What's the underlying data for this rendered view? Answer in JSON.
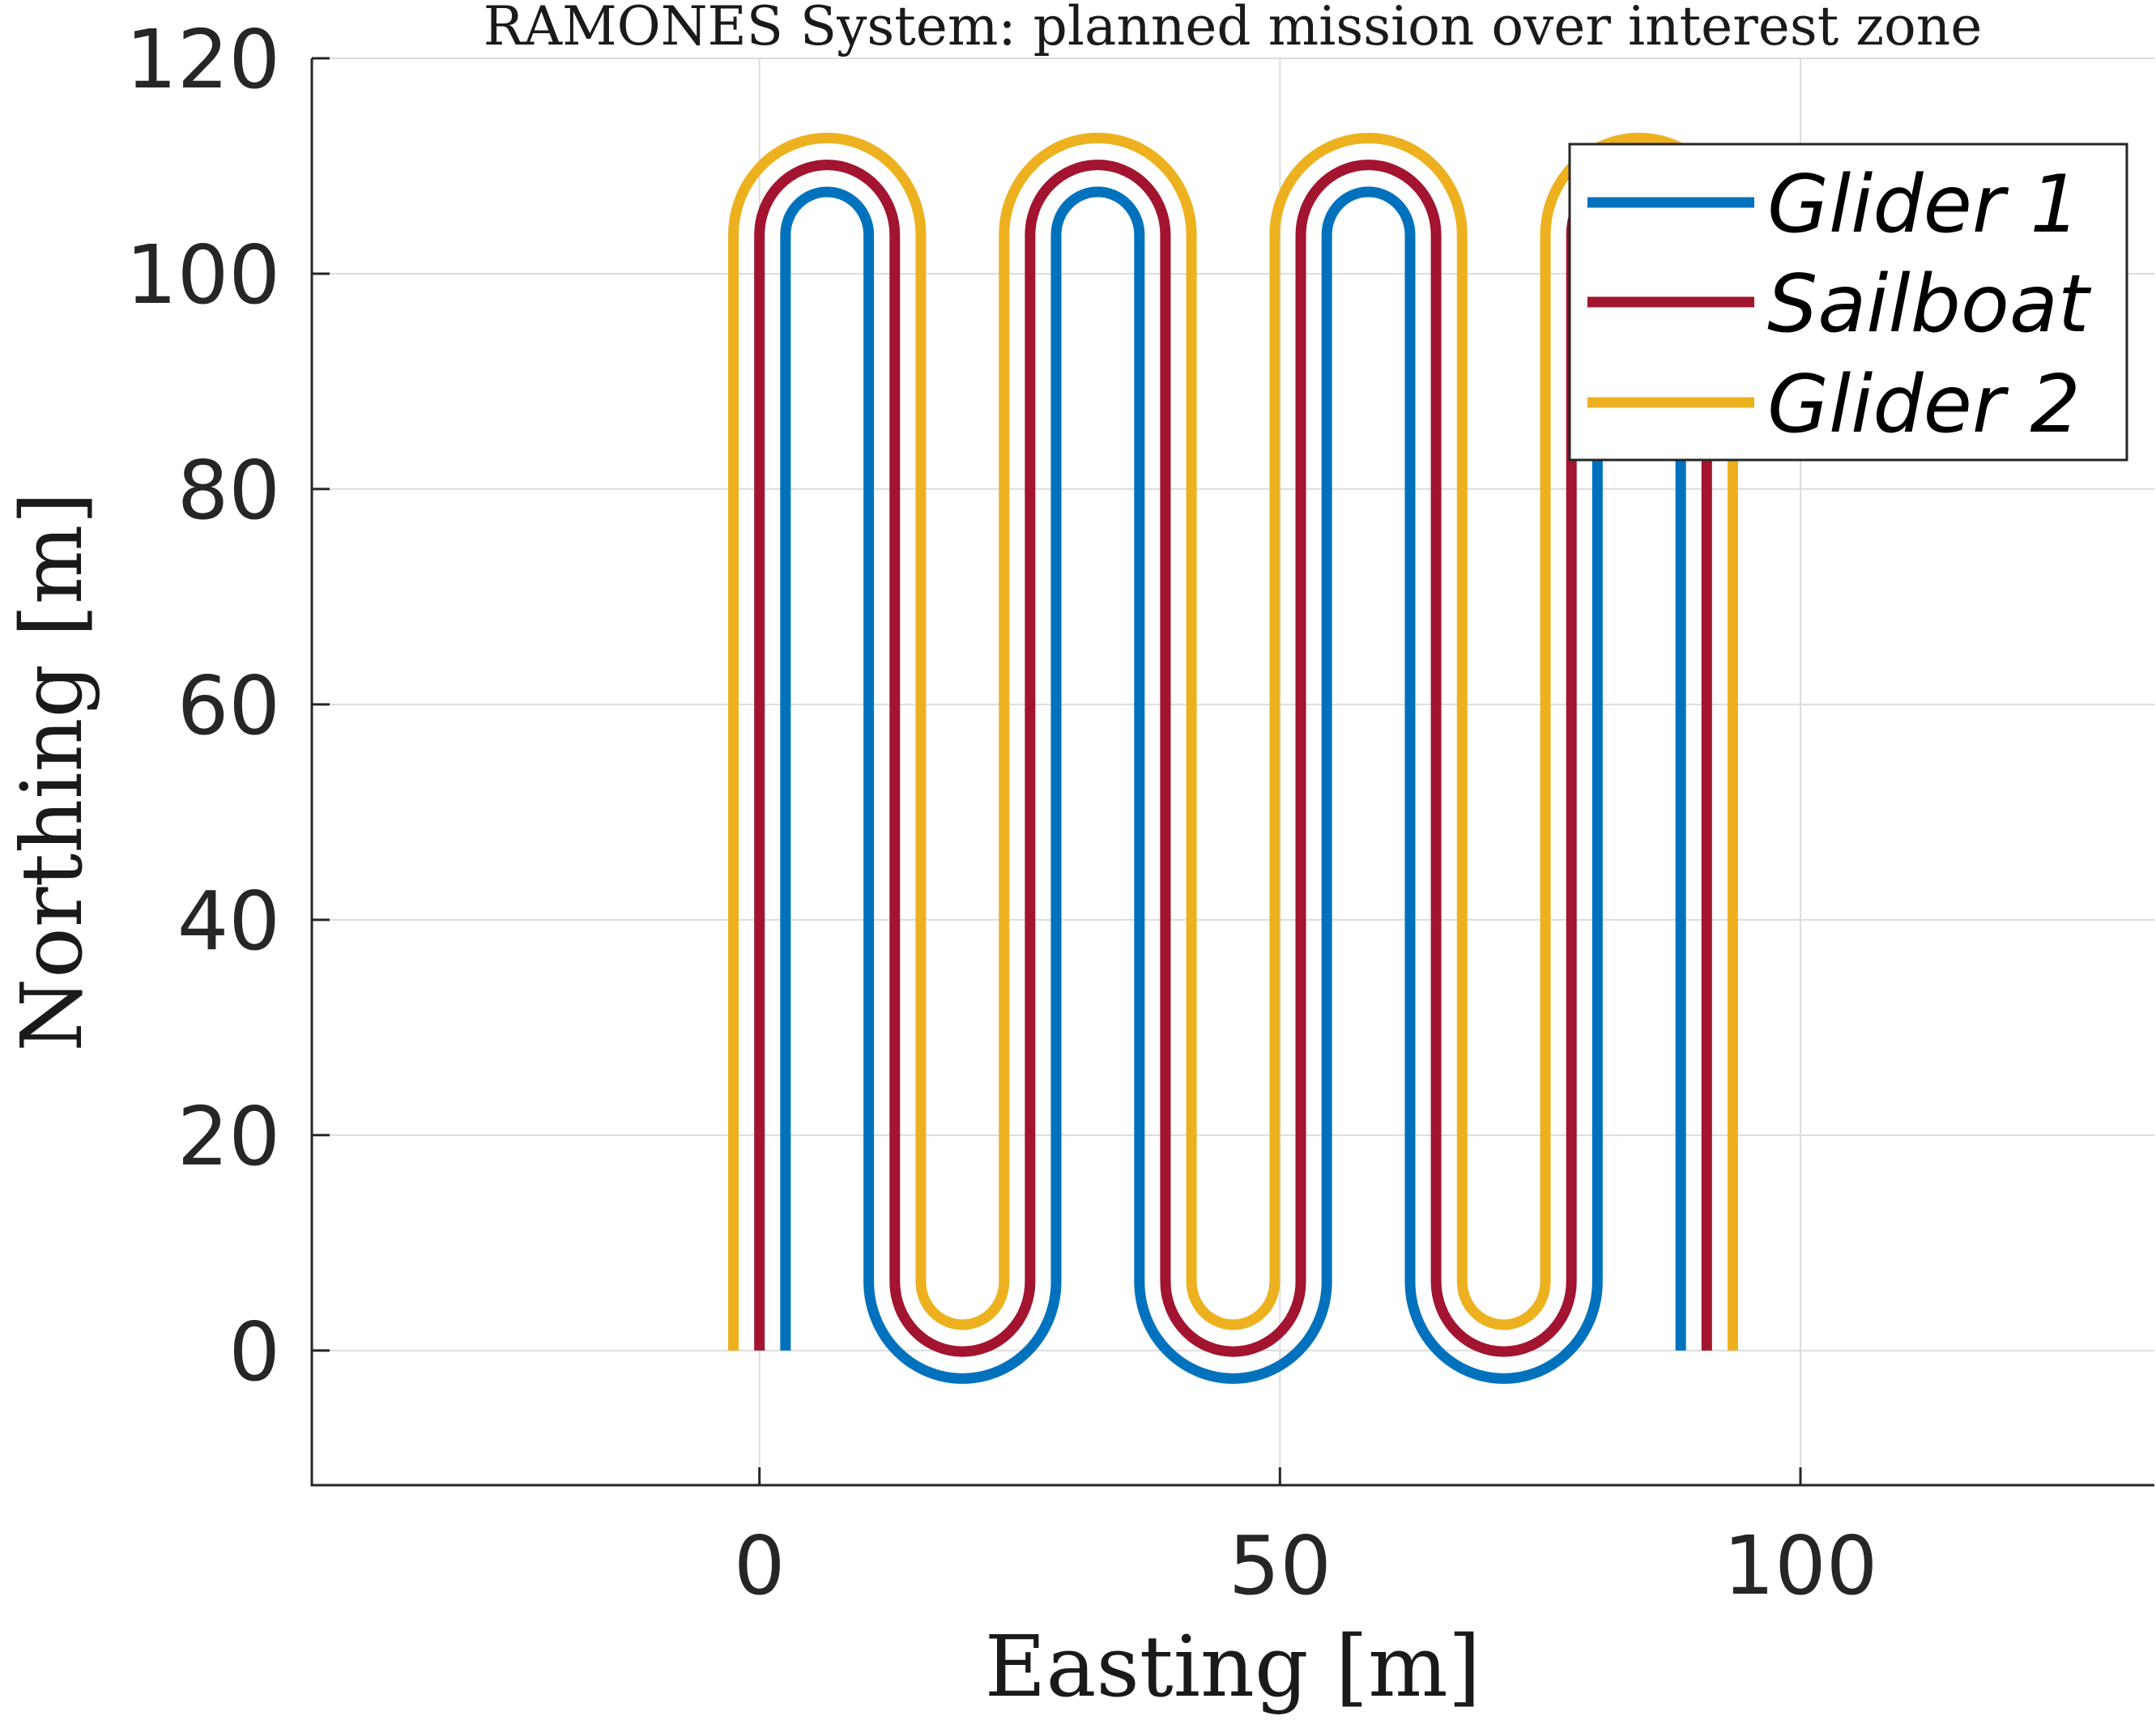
{
  "chart_data": {
    "type": "line",
    "title": "RAMONES System: planned mission over interest zone",
    "xlabel": "Easting [m]",
    "ylabel": "Northing [m]",
    "xlim": [
      -43,
      134
    ],
    "ylim": [
      -12.5,
      120
    ],
    "xticks": [
      0,
      50,
      100
    ],
    "yticks": [
      0,
      20,
      40,
      60,
      80,
      100,
      120
    ],
    "grid": true,
    "legend": "top-right",
    "series": [
      {
        "name": "Glider 1",
        "color": "#0072BD",
        "pattern": {
          "lane_x": [
            2.5,
            10.5,
            28.5,
            36.5,
            54.5,
            62.5,
            80.5,
            88.5
          ],
          "y_low": 6.4,
          "y_high": 103.6,
          "top_turn_radius": 4.0,
          "bottom_turn_radius": 9.0
        }
      },
      {
        "name": "Sailboat",
        "color": "#A2142F",
        "pattern": {
          "lane_x": [
            0,
            13,
            26,
            39,
            52,
            65,
            78,
            91
          ],
          "y_low": 6.4,
          "y_high": 103.6,
          "top_turn_radius": 6.5,
          "bottom_turn_radius": 6.5
        }
      },
      {
        "name": "Glider 2",
        "color": "#EDB120",
        "pattern": {
          "lane_x": [
            -2.5,
            15.5,
            23.5,
            41.5,
            49.5,
            67.5,
            75.5,
            93.5
          ],
          "y_low": 6.4,
          "y_high": 103.6,
          "top_turn_radius": 9.0,
          "bottom_turn_radius": 4.0
        }
      }
    ]
  }
}
